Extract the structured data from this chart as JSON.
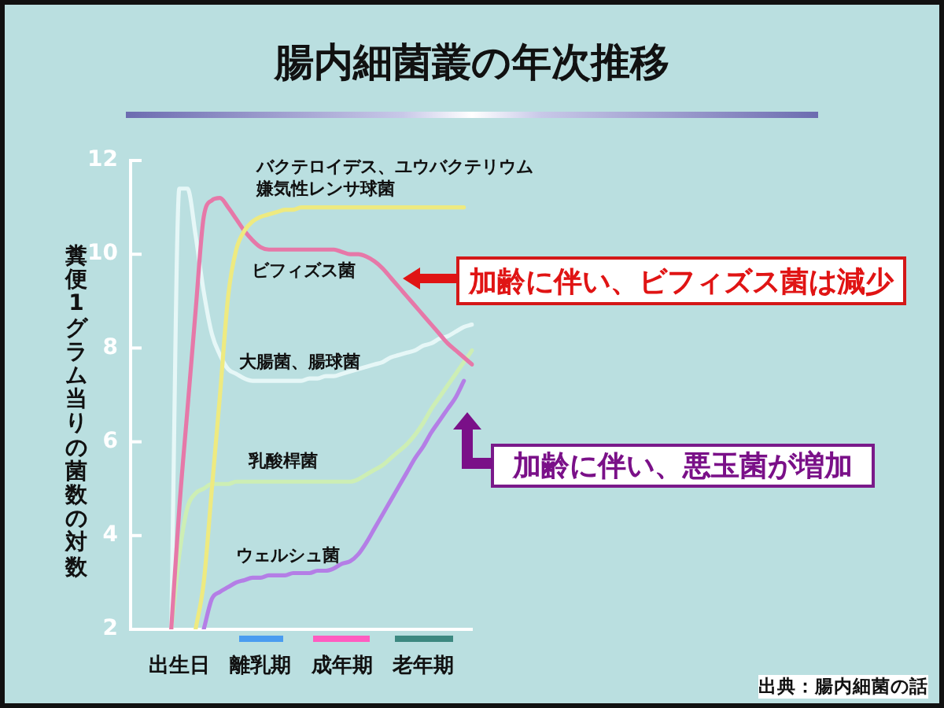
{
  "chart_data": {
    "type": "line",
    "title": "腸内細菌叢の年次推移",
    "ylabel": "糞便1グラム当りの菌数の対数",
    "categories": [
      null,
      null,
      null,
      null,
      null,
      null,
      "出生日",
      null,
      null,
      null,
      null,
      null,
      null,
      null,
      null,
      null,
      "離乳期",
      null,
      null,
      null,
      null,
      null,
      null,
      null,
      null,
      null,
      "成年期",
      null,
      null,
      null,
      null,
      null,
      null,
      null,
      null,
      null,
      "老年期",
      null,
      null,
      null,
      null,
      null,
      null
    ],
    "ylim": [
      2,
      12
    ],
    "yticks": [
      2,
      4,
      6,
      8,
      10,
      12
    ],
    "grid": false,
    "legend": false,
    "marker": "none",
    "series": [
      {
        "name": "バクテロイデス、ユウバクテリウム嫌気性レンサ球菌",
        "color": "#eeea80",
        "values": [
          null,
          null,
          null,
          null,
          null,
          null,
          null,
          null,
          2,
          3,
          5,
          7,
          9.1,
          10.1,
          10.5,
          10.7,
          10.8,
          10.85,
          10.9,
          10.95,
          10.95,
          11,
          11,
          11,
          11,
          11,
          11,
          11,
          11,
          11,
          11,
          11,
          11,
          11,
          11,
          11,
          11,
          11,
          11,
          11,
          11,
          11,
          null
        ]
      },
      {
        "name": "ビフィズス菌",
        "color": "#e678a8",
        "values": [
          null,
          null,
          null,
          null,
          null,
          2,
          4.6,
          6.7,
          8.8,
          10.8,
          11.15,
          11.2,
          11,
          10.75,
          10.5,
          10.3,
          10.15,
          10.1,
          10.1,
          10.1,
          10.1,
          10.1,
          10.1,
          10.1,
          10.1,
          10.1,
          10.05,
          10,
          10,
          9.95,
          9.85,
          9.7,
          9.5,
          9.3,
          9.1,
          8.9,
          8.7,
          8.5,
          8.3,
          8.1,
          7.95,
          7.8,
          7.65
        ]
      },
      {
        "name": "大腸菌、腸球菌",
        "color": "#e6f7f7",
        "values": [
          null,
          null,
          null,
          null,
          null,
          2,
          11.4,
          11.4,
          10.4,
          9.2,
          8.3,
          7.85,
          7.55,
          7.45,
          7.35,
          7.3,
          7.3,
          7.3,
          7.3,
          7.3,
          7.3,
          7.3,
          7.35,
          7.35,
          7.4,
          7.4,
          7.45,
          7.5,
          7.55,
          7.6,
          7.65,
          7.7,
          7.8,
          7.85,
          7.9,
          7.95,
          8.05,
          8.1,
          8.2,
          8.25,
          8.35,
          8.45,
          8.5
        ]
      },
      {
        "name": "乳酸桿菌",
        "color": "#cdeeb4",
        "values": [
          null,
          null,
          null,
          null,
          null,
          2,
          3.6,
          4.6,
          4.9,
          5,
          5.1,
          5.1,
          5.1,
          5.15,
          5.15,
          5.15,
          5.15,
          5.15,
          5.15,
          5.15,
          5.15,
          5.15,
          5.15,
          5.15,
          5.15,
          5.15,
          5.15,
          5.15,
          5.2,
          5.3,
          5.4,
          5.5,
          5.65,
          5.8,
          5.95,
          6.15,
          6.4,
          6.7,
          6.95,
          7.2,
          7.45,
          7.7,
          7.95
        ]
      },
      {
        "name": "ウェルシュ菌",
        "color": "#b47ee6",
        "values": [
          null,
          null,
          null,
          null,
          null,
          null,
          null,
          null,
          null,
          2,
          2.65,
          2.8,
          2.9,
          3,
          3.05,
          3.1,
          3.1,
          3.15,
          3.15,
          3.15,
          3.2,
          3.2,
          3.2,
          3.25,
          3.25,
          3.3,
          3.4,
          3.45,
          3.6,
          3.85,
          4.15,
          4.45,
          4.75,
          5.05,
          5.35,
          5.65,
          5.9,
          6.2,
          6.45,
          6.7,
          6.95,
          7.3,
          null
        ]
      }
    ],
    "annotations": [
      "加齢に伴い、ビフィズス菌は減少",
      "加齢に伴い、悪玉菌が増加",
      "出典：腸内細菌の話"
    ]
  }
}
